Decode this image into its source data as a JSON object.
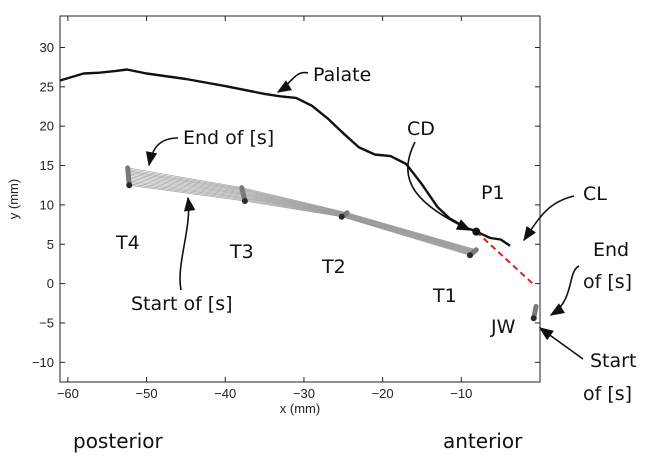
{
  "chart_data": {
    "type": "line",
    "xlabel": "x (mm)",
    "ylabel": "y (mm)",
    "xlim": [
      -61,
      0
    ],
    "ylim": [
      -12.5,
      34
    ],
    "xticks": [
      -60,
      -50,
      -40,
      -30,
      -20,
      -10
    ],
    "yticks": [
      -10,
      -5,
      0,
      5,
      10,
      15,
      20,
      25,
      30
    ],
    "grid": false,
    "colors": {
      "palate": "#111111",
      "tongue_mesh": "#8c8c8c",
      "sensor": "#4a4a4a",
      "constriction": "#e0201e"
    },
    "palate": {
      "x": [
        -61,
        -58,
        -56,
        -54,
        -52.5,
        -50,
        -45,
        -40,
        -35,
        -33,
        -31,
        -29,
        -27,
        -25,
        -23,
        -21,
        -19,
        -17,
        -15,
        -13,
        -11.5,
        -10.3,
        -9.5,
        -8.5,
        -7.2,
        -6.3,
        -5,
        -3.8
      ],
      "y": [
        25.8,
        26.7,
        26.8,
        27.0,
        27.2,
        26.7,
        26.0,
        25.1,
        24.1,
        23.8,
        23.6,
        22.6,
        21.0,
        19.1,
        17.3,
        16.4,
        16.2,
        15.2,
        12.6,
        9.7,
        8.3,
        7.6,
        7.1,
        6.8,
        6.2,
        5.8,
        5.6,
        4.8
      ]
    },
    "sensor_tracks": [
      {
        "label": "T4",
        "start": [
          -52.2,
          12.5
        ],
        "end": [
          -52.4,
          14.7
        ]
      },
      {
        "label": "T3",
        "start": [
          -37.5,
          10.5
        ],
        "end": [
          -37.9,
          12.2
        ]
      },
      {
        "label": "T2",
        "start": [
          -25.2,
          8.5
        ],
        "end": [
          -24.5,
          9.0
        ]
      },
      {
        "label": "T1",
        "start": [
          -8.9,
          3.6
        ],
        "end": [
          -8.1,
          4.3
        ]
      },
      {
        "label": "JW",
        "start": [
          -0.8,
          -4.4
        ],
        "end": [
          -0.5,
          -2.9
        ]
      }
    ],
    "constriction_point": [
      -8.1,
      6.6
    ],
    "constriction_line": {
      "x": [
        -8.1,
        -0.6
      ],
      "y": [
        6.6,
        -0.3
      ]
    },
    "annotations": {
      "palate": "Palate",
      "end_s_tongue": "End of [s]",
      "start_s_tongue": "Start of [s]",
      "cd": "CD",
      "p1": "P1",
      "cl": "CL",
      "t4": "T4",
      "t3": "T3",
      "t2": "T2",
      "t1": "T1",
      "jw": "JW",
      "end_jw_1": "End",
      "end_jw_2": "of [s]",
      "start_jw_1": "Start",
      "start_jw_2": "of [s]"
    },
    "direction_labels": {
      "posterior": "posterior",
      "anterior": "anterior"
    }
  }
}
